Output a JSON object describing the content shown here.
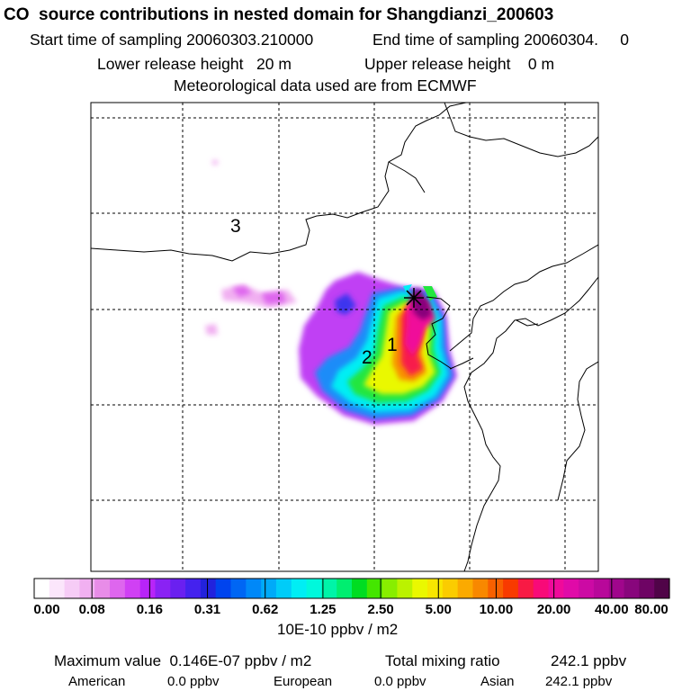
{
  "header": {
    "title": "CO  source contributions in nested domain for Shangdianzi_200603",
    "start_label": "Start time of sampling 20060303.210000",
    "end_label": "End time of sampling 20060304.     0",
    "lower_label": "Lower release height   20 m",
    "upper_label": "Upper release height    0 m",
    "met_label": "Meteorological data used are from ECMWF"
  },
  "map": {
    "region_labels": [
      "3",
      "2",
      "1"
    ],
    "station_marker": "star-icon"
  },
  "colorbar": {
    "tick_labels": [
      "0.00",
      "0.08",
      "0.16",
      "0.31",
      "0.62",
      "1.25",
      "2.50",
      "5.00",
      "10.00",
      "20.00",
      "40.00",
      "80.00"
    ],
    "unit": "10E-10 ppbv / m2",
    "colors": [
      "#ffffff",
      "#fbe6fb",
      "#f6ccf6",
      "#f1b0f1",
      "#e88ce8",
      "#de66ee",
      "#d040f4",
      "#b824f8",
      "#8a22f4",
      "#6a20f0",
      "#4422ee",
      "#2222dd",
      "#0044ee",
      "#0066f4",
      "#0088f8",
      "#00aaf8",
      "#00ccf8",
      "#00eef4",
      "#00f8dc",
      "#00f4a8",
      "#00ee70",
      "#00dd22",
      "#44e600",
      "#88ee00",
      "#bbf200",
      "#eaf800",
      "#f8e600",
      "#fbcc00",
      "#fbaa00",
      "#f88800",
      "#f86000",
      "#f83a00",
      "#f81a44",
      "#f80a78",
      "#f00a9a",
      "#e00aa8",
      "#cc0aa4",
      "#b8089a",
      "#a0068c",
      "#88067c",
      "#6e0464",
      "#500448"
    ]
  },
  "footer": {
    "max_label": "Maximum value  0.146E-07 ppbv / m2",
    "total_label": "Total mixing ratio",
    "total_value": "242.1 ppbv",
    "american_label": "American",
    "american_value": "0.0 ppbv",
    "european_label": "European",
    "european_value": "0.0 ppbv",
    "asian_label": "Asian",
    "asian_value": "242.1 ppbv"
  }
}
